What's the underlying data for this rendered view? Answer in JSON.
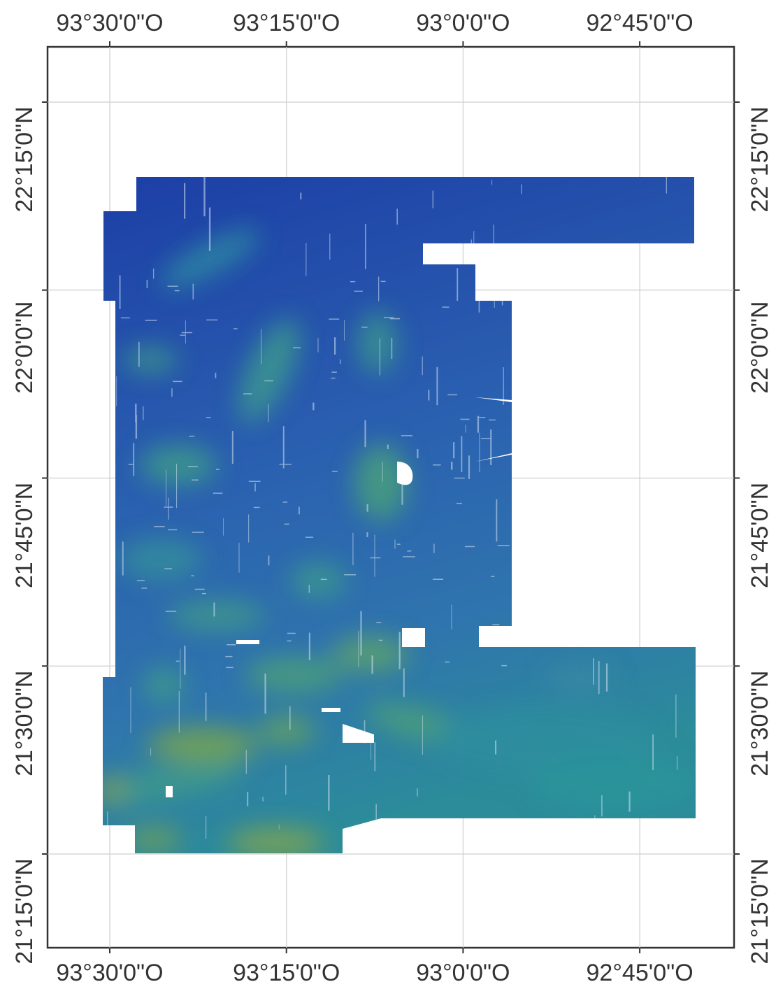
{
  "map": {
    "projection_note": "",
    "extent": {
      "lon_west": 93.55,
      "lon_east": 92.63,
      "lat_south": 21.08,
      "lat_north": 22.3
    },
    "colors": {
      "frame": "#333333",
      "grid": "#cfcfcf",
      "deep": "#1c3fa8",
      "mid": "#2f6db2",
      "shallow": "#2a8a9a",
      "shoal": "#5a9a5a",
      "void": "#ffffff"
    },
    "top_labels": [
      {
        "text": "93°30'0\"O",
        "lon": 93.5
      },
      {
        "text": "93°15'0\"O",
        "lon": 93.25
      },
      {
        "text": "93°0'0\"O",
        "lon": 93.0
      },
      {
        "text": "92°45'0\"O",
        "lon": 92.75
      }
    ],
    "bottom_labels": [
      {
        "text": "93°30'0\"O",
        "lon": 93.5
      },
      {
        "text": "93°15'0\"O",
        "lon": 93.25
      },
      {
        "text": "93°0'0\"O",
        "lon": 93.0
      },
      {
        "text": "92°45'0\"O",
        "lon": 92.75
      }
    ],
    "left_labels": [
      {
        "text": "22°15'0\"N",
        "lat": 22.25
      },
      {
        "text": "22°0'0\"N",
        "lat": 22.0
      },
      {
        "text": "21°45'0\"N",
        "lat": 21.75
      },
      {
        "text": "21°30'0\"N",
        "lat": 21.5
      },
      {
        "text": "21°15'0\"N",
        "lat": 21.25
      }
    ],
    "right_labels": [
      {
        "text": "22°15'0\"N",
        "lat": 22.25
      },
      {
        "text": "22°0'0\"N",
        "lat": 22.0
      },
      {
        "text": "21°45'0\"N",
        "lat": 21.75
      },
      {
        "text": "21°30'0\"N",
        "lat": 21.5
      },
      {
        "text": "21°15'0\"N",
        "lat": 21.25
      }
    ]
  }
}
